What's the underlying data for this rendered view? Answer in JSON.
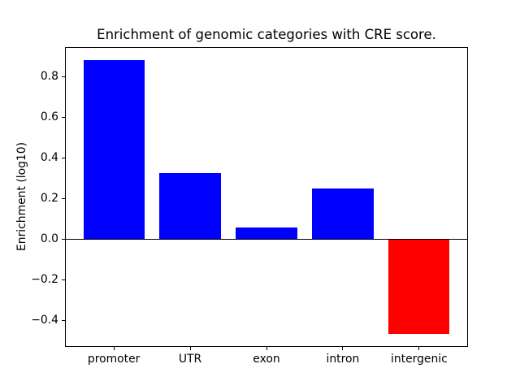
{
  "figure": {
    "background": "#ffffff"
  },
  "chart_data": {
    "type": "bar",
    "title": "Enrichment of genomic categories with CRE score.",
    "xlabel": "",
    "ylabel": "Enrichment (log10)",
    "categories": [
      "promoter",
      "UTR",
      "exon",
      "intron",
      "intergenic"
    ],
    "values": [
      0.884,
      0.328,
      0.06,
      0.252,
      -0.464
    ],
    "bar_colors": [
      "#0000ff",
      "#0000ff",
      "#0000ff",
      "#0000ff",
      "#ff0000"
    ],
    "positive_color": "#0000ff",
    "negative_color": "#ff0000",
    "ylim": [
      -0.53,
      0.946
    ],
    "yticks": [
      -0.4,
      -0.2,
      0.0,
      0.2,
      0.4,
      0.6,
      0.8
    ],
    "ytick_labels": [
      "−0.4",
      "−0.2",
      "0.0",
      "0.2",
      "0.4",
      "0.6",
      "0.8"
    ],
    "grid": false,
    "legend": false,
    "zero_line": true,
    "bar_width_fraction": 0.8,
    "axis_color": "#000000",
    "text_color": "#000000"
  }
}
